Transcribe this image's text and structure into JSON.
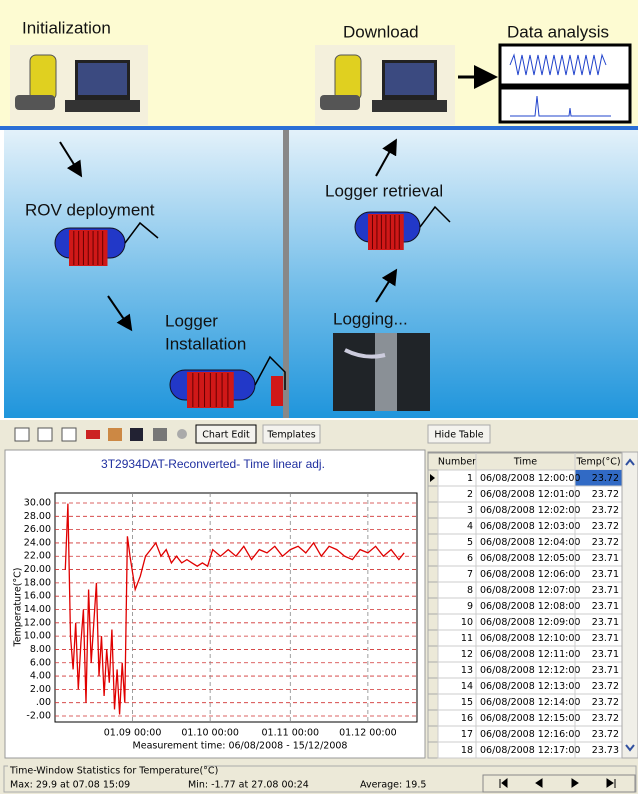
{
  "diagram": {
    "initialization": "Initialization",
    "download": "Download",
    "data_analysis": "Data analysis",
    "rov_deployment": "ROV deployment",
    "logger_retrieval": "Logger retrieval",
    "logger_installation": [
      "Logger",
      "Installation"
    ],
    "logging": "Logging..."
  },
  "toolbar": {
    "buttons": [
      "Chart Edit",
      "Templates",
      "Hide Table"
    ]
  },
  "chart": {
    "type": "line",
    "title": "3T2934DAT-Reconverted- Time linear adj.",
    "y_label": "Temperature(°C)",
    "x_label": "Measurement time: 06/08/2008 - 15/12/2008",
    "x": [
      "2008-08-06",
      "2008-08-07",
      "2008-08-08",
      "2008-08-09",
      "2008-08-10",
      "2008-08-11",
      "2008-08-12",
      "2008-08-13",
      "2008-08-14",
      "2008-08-15",
      "2008-08-16",
      "2008-08-17",
      "2008-08-18",
      "2008-08-19",
      "2008-08-20",
      "2008-08-21",
      "2008-08-22",
      "2008-08-23",
      "2008-08-24",
      "2008-08-25",
      "2008-08-26",
      "2008-08-27",
      "2008-08-28",
      "2008-08-29",
      "2008-08-30",
      "2008-08-31",
      "2008-09-02",
      "2008-09-04",
      "2008-09-06",
      "2008-09-08",
      "2008-09-10",
      "2008-09-12",
      "2008-09-14",
      "2008-09-16",
      "2008-09-18",
      "2008-09-20",
      "2008-09-22",
      "2008-09-24",
      "2008-09-26",
      "2008-09-28",
      "2008-09-30",
      "2008-10-02",
      "2008-10-05",
      "2008-10-08",
      "2008-10-11",
      "2008-10-14",
      "2008-10-17",
      "2008-10-20",
      "2008-10-23",
      "2008-10-26",
      "2008-10-29",
      "2008-11-01",
      "2008-11-04",
      "2008-11-07",
      "2008-11-10",
      "2008-11-13",
      "2008-11-16",
      "2008-11-19",
      "2008-11-22",
      "2008-11-25",
      "2008-11-28",
      "2008-12-01",
      "2008-12-04",
      "2008-12-07",
      "2008-12-10",
      "2008-12-13",
      "2008-12-15"
    ],
    "series": [
      {
        "color": "#e00000",
        "values": [
          20,
          29.9,
          10,
          5,
          12,
          2,
          9,
          14,
          0,
          17,
          6,
          12,
          18,
          4,
          10,
          1,
          8,
          3,
          11,
          -1,
          5,
          -1.77,
          6,
          0,
          25,
          22,
          17,
          19,
          22,
          23,
          24,
          22,
          23,
          21,
          22,
          21,
          21.5,
          21,
          20.5,
          21,
          20.5,
          23,
          22,
          23,
          22,
          23.5,
          21.5,
          23,
          22.5,
          23.5,
          22,
          23,
          23.5,
          22.5,
          24,
          22,
          23.5,
          23,
          22,
          21.5,
          23,
          22.5,
          23.5,
          22,
          23,
          21.5,
          22.5
        ]
      }
    ],
    "xlim": [
      "2008-08-02",
      "2008-12-20"
    ],
    "xticks": [
      {
        "value": "2008-09-01",
        "label": "01.09 00:00"
      },
      {
        "value": "2008-10-01",
        "label": "01.10 00:00"
      },
      {
        "value": "2008-11-01",
        "label": "01.11 00:00"
      },
      {
        "value": "2008-12-01",
        "label": "01.12 00:00"
      }
    ],
    "ylim": [
      -2.9,
      31.5
    ],
    "yticks": [
      {
        "value": 30,
        "label": "30.00"
      },
      {
        "value": 28,
        "label": "28.00"
      },
      {
        "value": 26,
        "label": "26.00"
      },
      {
        "value": 24,
        "label": "24.00"
      },
      {
        "value": 22,
        "label": "22.00"
      },
      {
        "value": 20,
        "label": "20.00"
      },
      {
        "value": 18,
        "label": "18.00"
      },
      {
        "value": 16,
        "label": "16.00"
      },
      {
        "value": 14,
        "label": "14.00"
      },
      {
        "value": 12,
        "label": "12.00"
      },
      {
        "value": 10,
        "label": "10.00"
      },
      {
        "value": 8,
        "label": "8.00"
      },
      {
        "value": 6,
        "label": "6.00"
      },
      {
        "value": 4,
        "label": "4.00"
      },
      {
        "value": 2,
        "label": "2.00"
      },
      {
        "value": 0,
        "label": ".00"
      },
      {
        "value": -2,
        "label": "-2.00"
      }
    ],
    "grid": true
  },
  "table": {
    "columns": [
      "Number",
      "Time",
      "Temp(°C)"
    ],
    "rows": [
      [
        1,
        "06/08/2008 12:00:00",
        23.72
      ],
      [
        2,
        "06/08/2008 12:01:00",
        23.72
      ],
      [
        3,
        "06/08/2008 12:02:00",
        23.72
      ],
      [
        4,
        "06/08/2008 12:03:00",
        23.72
      ],
      [
        5,
        "06/08/2008 12:04:00",
        23.72
      ],
      [
        6,
        "06/08/2008 12:05:00",
        23.71
      ],
      [
        7,
        "06/08/2008 12:06:00",
        23.71
      ],
      [
        8,
        "06/08/2008 12:07:00",
        23.71
      ],
      [
        9,
        "06/08/2008 12:08:00",
        23.71
      ],
      [
        10,
        "06/08/2008 12:09:00",
        23.71
      ],
      [
        11,
        "06/08/2008 12:10:00",
        23.71
      ],
      [
        12,
        "06/08/2008 12:11:00",
        23.71
      ],
      [
        13,
        "06/08/2008 12:12:00",
        23.71
      ],
      [
        14,
        "06/08/2008 12:13:00",
        23.72
      ],
      [
        15,
        "06/08/2008 12:14:00",
        23.72
      ],
      [
        16,
        "06/08/2008 12:15:00",
        23.72
      ],
      [
        17,
        "06/08/2008 12:16:00",
        23.72
      ],
      [
        18,
        "06/08/2008 12:17:00",
        23.73
      ]
    ]
  },
  "statistics": {
    "title": "Time-Window Statistics for Temperature(°C)",
    "max": "Max: 29.9 at 07.08 15:09",
    "min": "Min: -1.77 at 27.08 00:24",
    "average": "Average: 19.5"
  }
}
